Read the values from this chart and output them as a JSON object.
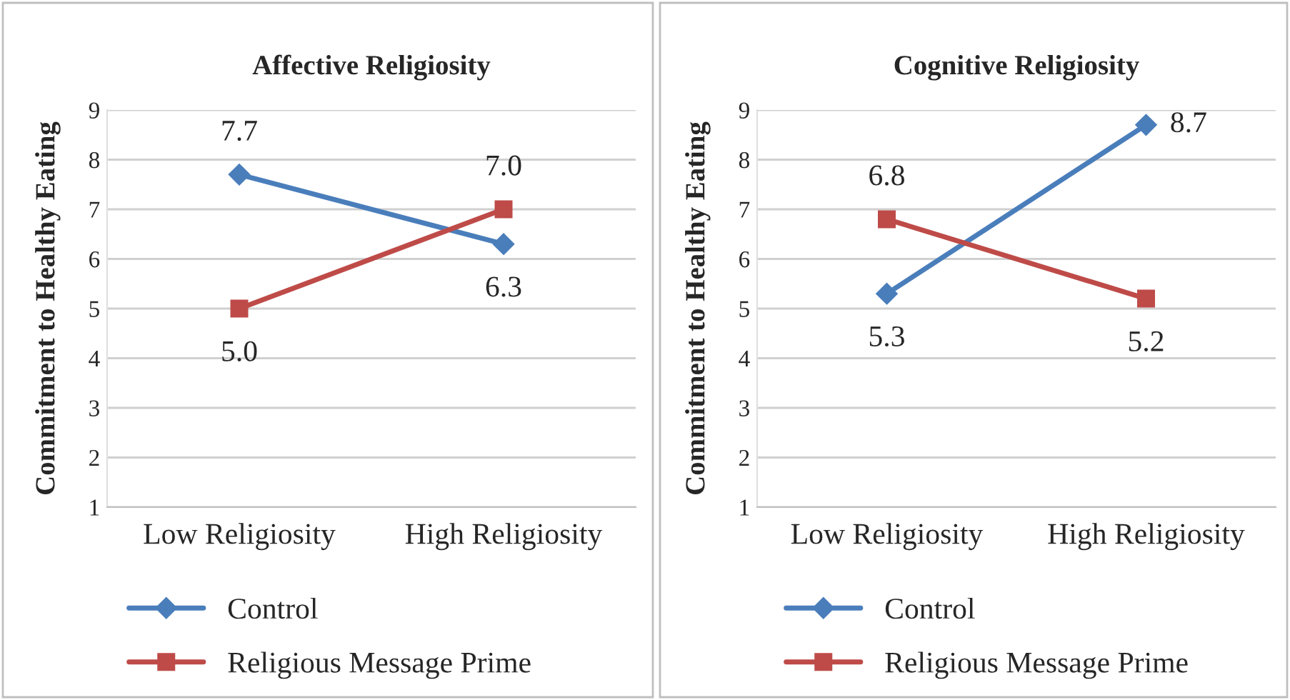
{
  "chart_data": [
    {
      "type": "line",
      "title": "Affective Religiosity",
      "ylabel": "Commitment to Healthy Eating",
      "categories": [
        "Low Religiosity",
        "High Religiosity"
      ],
      "series": [
        {
          "name": "Control",
          "color": "#4a7ebb",
          "marker": "diamond",
          "values": [
            7.7,
            6.3
          ],
          "value_labels": [
            "7.7",
            "6.3"
          ]
        },
        {
          "name": "Religious Message Prime",
          "color": "#be4b48",
          "marker": "square",
          "values": [
            5.0,
            7.0
          ],
          "value_labels": [
            "5.0",
            "7.0"
          ]
        }
      ],
      "ylim": [
        1,
        9
      ],
      "yticks": [
        1,
        2,
        3,
        4,
        5,
        6,
        7,
        8,
        9
      ],
      "grid": "y",
      "legend": "bottom"
    },
    {
      "type": "line",
      "title": "Cognitive Religiosity",
      "ylabel": "Commitment to Healthy Eating",
      "categories": [
        "Low Religiosity",
        "High Religiosity"
      ],
      "series": [
        {
          "name": "Control",
          "color": "#4a7ebb",
          "marker": "diamond",
          "values": [
            5.3,
            8.7
          ],
          "value_labels": [
            "5.3",
            "8.7"
          ]
        },
        {
          "name": "Religious Message Prime",
          "color": "#be4b48",
          "marker": "square",
          "values": [
            6.8,
            5.2
          ],
          "value_labels": [
            "6.8",
            "5.2"
          ]
        }
      ],
      "ylim": [
        1,
        9
      ],
      "yticks": [
        1,
        2,
        3,
        4,
        5,
        6,
        7,
        8,
        9
      ],
      "grid": "y",
      "legend": "bottom"
    }
  ]
}
